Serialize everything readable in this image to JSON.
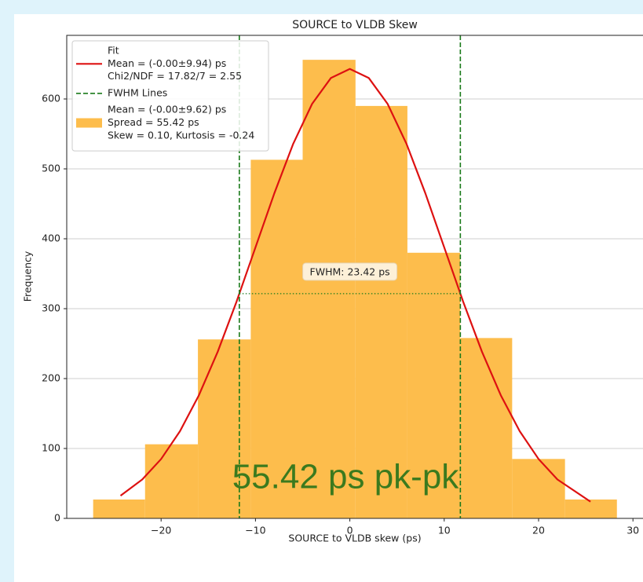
{
  "chart_data": {
    "type": "histogram",
    "title": "SOURCE to VLDB Skew",
    "xlabel": "SOURCE to VLDB skew (ps)",
    "ylabel": "Frequency",
    "bins": [
      -27.2,
      -21.7,
      -16.1,
      -10.5,
      -5.0,
      0.6,
      6.1,
      11.7,
      17.2,
      22.8,
      28.3
    ],
    "counts": [
      27,
      106,
      256,
      513,
      656,
      590,
      380,
      258,
      85,
      27
    ],
    "color": "#fdbd4c",
    "xlim": [
      -30,
      31
    ],
    "ylim": [
      0,
      691
    ],
    "xticks": [
      {
        "value": -20,
        "label": "−20"
      },
      {
        "value": -10,
        "label": "−10"
      },
      0,
      10,
      20,
      30
    ],
    "yticks": [
      0,
      100,
      200,
      300,
      400,
      500,
      600
    ],
    "grid": true,
    "fit": {
      "color": "#dd1111",
      "x": [
        -24.3,
        -22,
        -20,
        -18,
        -16,
        -14,
        -12,
        -10,
        -8,
        -6,
        -4,
        -2,
        0,
        2,
        4,
        6,
        8,
        10,
        12,
        14,
        16,
        18,
        20,
        22,
        25.5
      ],
      "y": [
        32.4,
        55.6,
        84.9,
        124.7,
        176,
        238.4,
        310.3,
        387.7,
        465.1,
        535.9,
        593,
        630.1,
        643,
        630.1,
        593,
        535.9,
        465.1,
        387.7,
        310.3,
        238.4,
        176,
        124.7,
        84.9,
        55.6,
        23.9
      ]
    },
    "fwhm": {
      "positions": [
        -11.71,
        11.71
      ],
      "half_max": 321.5,
      "color": "#1a7a1a",
      "label": "FWHM: 23.42 ps"
    },
    "legend": {
      "loc": "upper left",
      "entries": [
        {
          "kind": "line",
          "lines": [
            "Fit",
            "Mean = (-0.00±9.94) ps",
            "Chi2/NDF = 17.82/7 = 2.55"
          ]
        },
        {
          "kind": "dashed",
          "lines": [
            "FWHM Lines"
          ]
        },
        {
          "kind": "patch",
          "lines": [
            "Mean = (-0.00±9.62) ps",
            "Spread = 55.42 ps",
            "Skew = 0.10, Kurtosis = -0.24"
          ]
        }
      ]
    },
    "overlay_text": "55.42 ps pk-pk"
  }
}
